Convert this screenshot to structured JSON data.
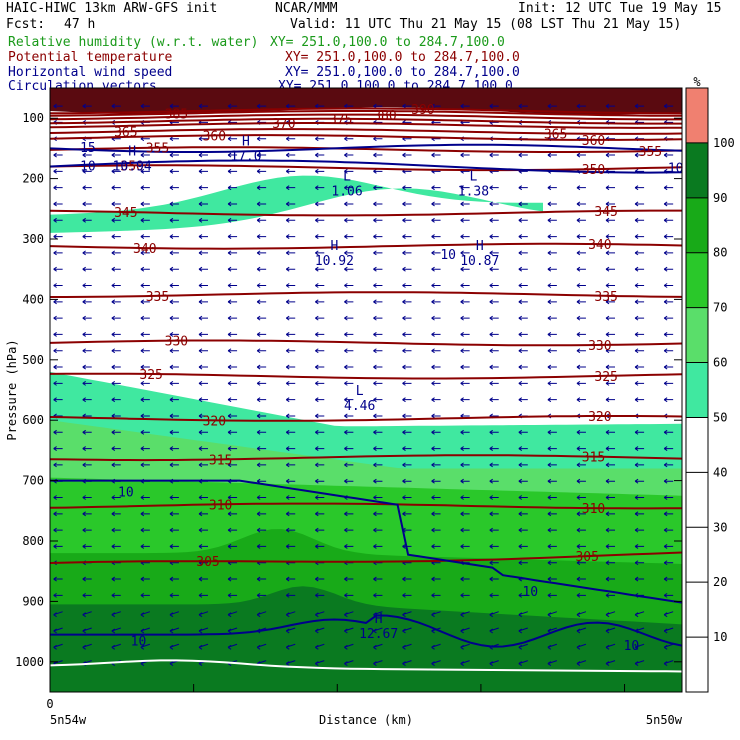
{
  "header": {
    "model": "HAIC-HIWC 13km ARW-GFS init",
    "org": "NCAR/MMM",
    "init": "Init: 12 UTC Tue 19 May 15",
    "fcst_label": "Fcst:",
    "fcst_value": "47 h",
    "valid": "Valid: 11 UTC Thu 21 May 15 (08 LST Thu 21 May 15)"
  },
  "fields": [
    {
      "label": "Relative humidity (w.r.t. water)",
      "xy": "XY= 251.0,100.0 to 284.7,100.0",
      "color": "#1a9a1a"
    },
    {
      "label": "Potential temperature",
      "xy": "XY= 251.0,100.0 to 284.7,100.0",
      "color": "#8b0000"
    },
    {
      "label": "Horizontal wind speed",
      "xy": "XY= 251.0,100.0 to 284.7,100.0",
      "color": "#00008b"
    },
    {
      "label": "Circulation vectors",
      "xy": "XY= 251.0,100.0 to 284.7,100.0",
      "color": "#00008b"
    }
  ],
  "chart_data": {
    "type": "cross-section",
    "ylabel": "Pressure (hPa)",
    "xlabel": "Distance (km)",
    "y_ticks": [
      100,
      200,
      300,
      400,
      500,
      600,
      700,
      800,
      900,
      1000
    ],
    "y_range": [
      50,
      1050
    ],
    "x_start_label": "0",
    "x_left_label": "5n54w",
    "x_right_label": "5n50w",
    "colorbar": {
      "unit": "%",
      "levels": [
        10,
        20,
        30,
        40,
        50,
        60,
        70,
        80,
        90,
        100
      ],
      "band_colors": [
        "#ffffff",
        "#ffffff",
        "#ffffff",
        "#ffffff",
        "#ffffff",
        "#40e8a0",
        "#5ade6a",
        "#2ac82a",
        "#18aa18",
        "#0a7a20",
        "#f08070"
      ]
    },
    "theta_contours": [
      {
        "value": 305,
        "p": 840,
        "labels": [
          {
            "text": "305",
            "x_frac": 0.25
          },
          {
            "text": "305",
            "x_frac": 0.85
          }
        ]
      },
      {
        "value": 310,
        "p": 742,
        "labels": [
          {
            "text": "310",
            "x_frac": 0.27
          },
          {
            "text": "310",
            "x_frac": 0.86
          }
        ]
      },
      {
        "value": 315,
        "p": 662,
        "labels": [
          {
            "text": "315",
            "x_frac": 0.27
          },
          {
            "text": "315",
            "x_frac": 0.86
          }
        ]
      },
      {
        "value": 320,
        "p": 597,
        "labels": [
          {
            "text": "320",
            "x_frac": 0.26
          },
          {
            "text": "320",
            "x_frac": 0.87
          }
        ]
      },
      {
        "value": 325,
        "p": 527,
        "labels": [
          {
            "text": "325",
            "x_frac": 0.16
          },
          {
            "text": "325",
            "x_frac": 0.88
          }
        ]
      },
      {
        "value": 330,
        "p": 472,
        "labels": [
          {
            "text": "330",
            "x_frac": 0.2
          },
          {
            "text": "330",
            "x_frac": 0.87
          }
        ]
      },
      {
        "value": 335,
        "p": 392,
        "labels": [
          {
            "text": "335",
            "x_frac": 0.17
          },
          {
            "text": "335",
            "x_frac": 0.88
          }
        ]
      },
      {
        "value": 340,
        "p": 312,
        "labels": [
          {
            "text": "340",
            "x_frac": 0.15
          },
          {
            "text": "340",
            "x_frac": 0.87
          }
        ]
      },
      {
        "value": 345,
        "p": 257,
        "labels": [
          {
            "text": "345",
            "x_frac": 0.12
          },
          {
            "text": "345",
            "x_frac": 0.88
          }
        ]
      },
      {
        "value": 350,
        "p": 182,
        "labels": [
          {
            "text": "350",
            "x_frac": 0.13
          },
          {
            "text": "350",
            "x_frac": 0.86
          }
        ]
      },
      {
        "value": 355,
        "p": 152,
        "labels": [
          {
            "text": "355",
            "x_frac": 0.17
          },
          {
            "text": "355",
            "x_frac": 0.95
          }
        ]
      },
      {
        "value": 360,
        "p": 132,
        "labels": [
          {
            "text": "360",
            "x_frac": 0.26
          },
          {
            "text": "360",
            "x_frac": 0.86
          }
        ]
      },
      {
        "value": 365,
        "p": 122,
        "labels": [
          {
            "text": "365",
            "x_frac": 0.12
          },
          {
            "text": "365",
            "x_frac": 0.8
          }
        ]
      },
      {
        "value": 370,
        "p": 112,
        "labels": [
          {
            "text": "370",
            "x_frac": 0.37
          }
        ]
      },
      {
        "value": 375,
        "p": 105,
        "labels": [
          {
            "text": "375",
            "x_frac": 0.46
          }
        ]
      },
      {
        "value": 380,
        "p": 98,
        "labels": [
          {
            "text": "380",
            "x_frac": 0.53
          }
        ]
      },
      {
        "value": 385,
        "p": 92,
        "labels": [
          {
            "text": "385",
            "x_frac": 0.2
          }
        ]
      },
      {
        "value": 390,
        "p": 88,
        "labels": [
          {
            "text": "390",
            "x_frac": 0.59
          }
        ]
      }
    ],
    "wind_contour_labels": [
      {
        "text": "10",
        "x_frac": 0.06,
        "p": 178
      },
      {
        "text": "15",
        "x_frac": 0.06,
        "p": 148
      },
      {
        "text": "10",
        "x_frac": 0.63,
        "p": 325
      },
      {
        "text": "10",
        "x_frac": 0.12,
        "p": 718
      },
      {
        "text": "10",
        "x_frac": 0.76,
        "p": 883
      },
      {
        "text": "10",
        "x_frac": 0.14,
        "p": 965
      },
      {
        "text": "10",
        "x_frac": 0.99,
        "p": 182
      },
      {
        "text": "10",
        "x_frac": 0.92,
        "p": 972
      }
    ],
    "extrema": [
      {
        "type": "L",
        "value": "1.06",
        "x_frac": 0.47,
        "p": 210
      },
      {
        "type": "L",
        "value": "1.38",
        "x_frac": 0.67,
        "p": 210
      },
      {
        "type": "H",
        "value": "10.92",
        "x_frac": 0.45,
        "p": 325
      },
      {
        "type": "H",
        "value": "10.87",
        "x_frac": 0.68,
        "p": 325
      },
      {
        "type": "L",
        "value": "4.46",
        "x_frac": 0.49,
        "p": 565
      },
      {
        "type": "H",
        "value": "12.67",
        "x_frac": 0.52,
        "p": 942
      },
      {
        "type": "H",
        "value": "17.0",
        "x_frac": 0.31,
        "p": 152
      },
      {
        "type": "H",
        "value": "10.94",
        "x_frac": 0.13,
        "p": 168
      }
    ],
    "colors": {
      "theta": "#8b0000",
      "wind": "#00008b",
      "rh_text": "#1a9a1a"
    }
  }
}
